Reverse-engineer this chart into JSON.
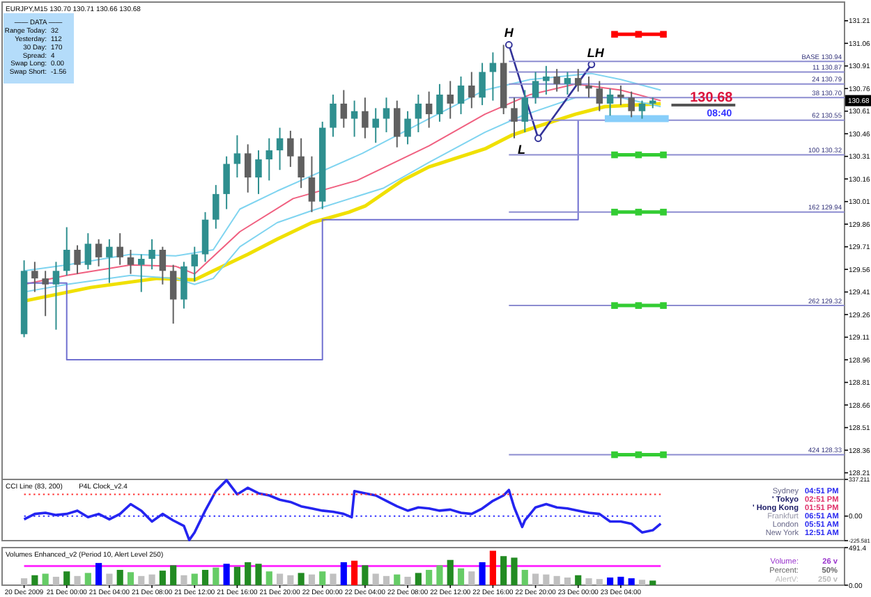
{
  "chart_data": [
    {
      "type": "candlestick",
      "title": "EURJPY,M15 130.70 130.71 130.66 130.68",
      "tick_labels": "y",
      "xlim": [
        "2009-12-20T18:00",
        "2009-12-24T01:00"
      ],
      "ylim": [
        128.18,
        131.32
      ],
      "yticks": [
        131.21,
        131.06,
        130.91,
        130.76,
        130.61,
        130.46,
        130.31,
        130.16,
        130.01,
        129.86,
        129.71,
        129.56,
        129.41,
        129.26,
        129.11,
        128.96,
        128.81,
        128.66,
        128.51,
        128.36,
        128.21
      ],
      "x": [
        "2009-12-20T20:00",
        "2009-12-20T21:00",
        "2009-12-20T22:00",
        "2009-12-20T23:00",
        "2009-12-21T00:00",
        "2009-12-21T01:00",
        "2009-12-21T02:00",
        "2009-12-21T03:00",
        "2009-12-21T04:00",
        "2009-12-21T05:00",
        "2009-12-21T06:00",
        "2009-12-21T07:00",
        "2009-12-21T08:00",
        "2009-12-21T09:00",
        "2009-12-21T10:00",
        "2009-12-21T11:00",
        "2009-12-21T12:00",
        "2009-12-21T13:00",
        "2009-12-21T14:00",
        "2009-12-21T15:00",
        "2009-12-21T16:00",
        "2009-12-21T17:00",
        "2009-12-21T18:00",
        "2009-12-21T19:00",
        "2009-12-21T20:00",
        "2009-12-21T21:00",
        "2009-12-21T22:00",
        "2009-12-21T23:00",
        "2009-12-22T00:00",
        "2009-12-22T01:00",
        "2009-12-22T02:00",
        "2009-12-22T03:00",
        "2009-12-22T04:00",
        "2009-12-22T05:00",
        "2009-12-22T06:00",
        "2009-12-22T07:00",
        "2009-12-22T08:00",
        "2009-12-22T09:00",
        "2009-12-22T10:00",
        "2009-12-22T11:00",
        "2009-12-22T12:00",
        "2009-12-22T13:00",
        "2009-12-22T14:00",
        "2009-12-22T15:00",
        "2009-12-22T16:00",
        "2009-12-22T17:00",
        "2009-12-22T18:00",
        "2009-12-22T19:00",
        "2009-12-22T20:00",
        "2009-12-22T21:00",
        "2009-12-22T22:00",
        "2009-12-22T23:00",
        "2009-12-23T00:00",
        "2009-12-23T01:00",
        "2009-12-23T02:00",
        "2009-12-23T03:00",
        "2009-12-23T04:00",
        "2009-12-23T05:00",
        "2009-12-23T06:00",
        "2009-12-23T07:00"
      ],
      "ohlc": [
        [
          129.13,
          129.62,
          129.11,
          129.55
        ],
        [
          129.55,
          129.61,
          129.41,
          129.5
        ],
        [
          129.5,
          129.55,
          129.25,
          129.46
        ],
        [
          129.46,
          129.61,
          129.16,
          129.55
        ],
        [
          129.55,
          129.84,
          129.52,
          129.69
        ],
        [
          129.69,
          129.72,
          129.53,
          129.59
        ],
        [
          129.59,
          129.8,
          129.56,
          129.73
        ],
        [
          129.73,
          129.76,
          129.58,
          129.64
        ],
        [
          129.64,
          129.76,
          129.47,
          129.71
        ],
        [
          129.71,
          129.8,
          129.59,
          129.64
        ],
        [
          129.64,
          129.69,
          129.53,
          129.59
        ],
        [
          129.59,
          129.66,
          129.41,
          129.63
        ],
        [
          129.63,
          129.76,
          129.56,
          129.69
        ],
        [
          129.69,
          129.71,
          129.46,
          129.55
        ],
        [
          129.55,
          129.59,
          129.2,
          129.36
        ],
        [
          129.36,
          129.61,
          129.3,
          129.58
        ],
        [
          129.58,
          129.71,
          129.48,
          129.66
        ],
        [
          129.66,
          129.94,
          129.61,
          129.89
        ],
        [
          129.89,
          130.12,
          129.83,
          130.06
        ],
        [
          130.06,
          130.31,
          129.96,
          130.26
        ],
        [
          130.26,
          130.45,
          130.17,
          130.33
        ],
        [
          130.33,
          130.39,
          130.07,
          130.17
        ],
        [
          130.17,
          130.35,
          130.06,
          130.29
        ],
        [
          130.29,
          130.43,
          130.15,
          130.35
        ],
        [
          130.35,
          130.5,
          130.22,
          130.43
        ],
        [
          130.43,
          130.48,
          130.24,
          130.31
        ],
        [
          130.31,
          130.43,
          130.1,
          130.17
        ],
        [
          130.17,
          130.31,
          129.94,
          130.01
        ],
        [
          130.01,
          130.54,
          129.96,
          130.5
        ],
        [
          130.5,
          130.72,
          130.44,
          130.66
        ],
        [
          130.66,
          130.75,
          130.5,
          130.56
        ],
        [
          130.56,
          130.68,
          130.44,
          130.61
        ],
        [
          130.61,
          130.7,
          130.43,
          130.5
        ],
        [
          130.5,
          130.63,
          130.4,
          130.56
        ],
        [
          130.56,
          130.7,
          130.47,
          130.63
        ],
        [
          130.63,
          130.68,
          130.37,
          130.44
        ],
        [
          130.44,
          130.61,
          130.39,
          130.56
        ],
        [
          130.56,
          130.72,
          130.47,
          130.66
        ],
        [
          130.66,
          130.74,
          130.5,
          130.59
        ],
        [
          130.59,
          130.79,
          130.54,
          130.72
        ],
        [
          130.72,
          130.81,
          130.56,
          130.66
        ],
        [
          130.66,
          130.84,
          130.59,
          130.78
        ],
        [
          130.78,
          130.87,
          130.63,
          130.7
        ],
        [
          130.7,
          130.93,
          130.65,
          130.87
        ],
        [
          130.87,
          131.0,
          130.68,
          130.93
        ],
        [
          130.93,
          131.05,
          130.59,
          130.63
        ],
        [
          130.63,
          130.7,
          130.43,
          130.54
        ],
        [
          130.54,
          130.75,
          130.47,
          130.7
        ],
        [
          130.7,
          130.87,
          130.66,
          130.81
        ],
        [
          130.81,
          130.91,
          130.72,
          130.84
        ],
        [
          130.84,
          130.89,
          130.74,
          130.79
        ],
        [
          130.79,
          130.87,
          130.72,
          130.83
        ],
        [
          130.83,
          130.89,
          130.74,
          130.78
        ],
        [
          130.78,
          130.84,
          130.7,
          130.76
        ],
        [
          130.76,
          130.81,
          130.61,
          130.66
        ],
        [
          130.66,
          130.76,
          130.58,
          130.72
        ],
        [
          130.72,
          130.78,
          130.65,
          130.7
        ],
        [
          130.7,
          130.74,
          130.57,
          130.61
        ],
        [
          130.61,
          130.68,
          130.56,
          130.66
        ],
        [
          130.66,
          130.7,
          130.63,
          130.68
        ]
      ],
      "colors": [
        "#2f8f8f",
        "#606060",
        "#606060",
        "#2f8f8f",
        "#2f8f8f",
        "#606060",
        "#2f8f8f",
        "#606060",
        "#2f8f8f",
        "#606060",
        "#606060",
        "#2f8f8f",
        "#2f8f8f",
        "#606060",
        "#606060",
        "#2f8f8f",
        "#2f8f8f",
        "#2f8f8f",
        "#2f8f8f",
        "#2f8f8f",
        "#2f8f8f",
        "#606060",
        "#2f8f8f",
        "#2f8f8f",
        "#2f8f8f",
        "#606060",
        "#606060",
        "#606060",
        "#2f8f8f",
        "#2f8f8f",
        "#606060",
        "#2f8f8f",
        "#606060",
        "#2f8f8f",
        "#2f8f8f",
        "#606060",
        "#2f8f8f",
        "#2f8f8f",
        "#606060",
        "#2f8f8f",
        "#606060",
        "#2f8f8f",
        "#606060",
        "#2f8f8f",
        "#2f8f8f",
        "#606060",
        "#606060",
        "#2f8f8f",
        "#2f8f8f",
        "#2f8f8f",
        "#606060",
        "#2f8f8f",
        "#606060",
        "#606060",
        "#606060",
        "#2f8f8f",
        "#606060",
        "#606060",
        "#2f8f8f",
        "#2f8f8f"
      ],
      "series": [
        {
          "type": "line",
          "color": "#f0e000",
          "x": [
            "2009-12-20T20:00",
            "2009-12-21T02:15",
            "2009-12-21T08:30",
            "2009-12-21T12:00",
            "2009-12-21T13:45",
            "2009-12-21T17:00",
            "2009-12-21T19:45",
            "2009-12-21T23:00",
            "2009-12-22T02:30",
            "2009-12-22T04:00",
            "2009-12-22T07:30",
            "2009-12-22T10:00",
            "2009-12-22T15:15",
            "2009-12-22T17:45",
            "2009-12-22T20:15",
            "2009-12-22T23:45",
            "2009-12-23T02:30",
            "2009-12-23T05:15",
            "2009-12-23T07:45"
          ],
          "values": [
            129.35,
            129.44,
            129.5,
            129.49,
            129.55,
            129.66,
            129.76,
            129.87,
            129.94,
            129.98,
            130.15,
            130.24,
            130.36,
            130.45,
            130.51,
            130.59,
            130.64,
            130.65,
            130.66
          ]
        },
        {
          "type": "line",
          "color": "#f06080",
          "x": [
            "2009-12-20T20:00",
            "2009-12-21T00:00",
            "2009-12-21T06:00",
            "2009-12-21T10:15",
            "2009-12-21T12:00",
            "2009-12-21T16:15",
            "2009-12-21T21:15",
            "2009-12-22T03:15",
            "2009-12-22T10:00",
            "2009-12-22T15:15",
            "2009-12-22T19:30",
            "2009-12-22T23:45",
            "2009-12-23T04:00",
            "2009-12-23T07:45"
          ],
          "values": [
            129.46,
            129.52,
            129.59,
            129.58,
            129.53,
            129.81,
            130.03,
            130.15,
            130.38,
            130.59,
            130.72,
            130.79,
            130.75,
            130.68
          ]
        },
        {
          "type": "line",
          "color": "#7fd4f0",
          "x": [
            "2009-12-20T20:00",
            "2009-12-21T00:00",
            "2009-12-21T06:00",
            "2009-12-21T10:15",
            "2009-12-21T13:45",
            "2009-12-21T16:15",
            "2009-12-21T19:45",
            "2009-12-22T03:45",
            "2009-12-22T10:00",
            "2009-12-22T15:15",
            "2009-12-22T19:30",
            "2009-12-23T01:15",
            "2009-12-23T04:00",
            "2009-12-23T07:45"
          ],
          "values": [
            129.55,
            129.59,
            129.66,
            129.65,
            129.69,
            129.96,
            130.08,
            130.33,
            130.56,
            130.75,
            130.82,
            130.86,
            130.82,
            130.75
          ]
        },
        {
          "type": "line",
          "color": "#7fd4f0",
          "x": [
            "2009-12-20T20:00",
            "2009-12-21T00:00",
            "2009-12-21T06:00",
            "2009-12-21T10:15",
            "2009-12-21T12:00",
            "2009-12-21T13:45",
            "2009-12-21T16:15",
            "2009-12-21T19:45",
            "2009-12-21T23:00",
            "2009-12-22T05:45",
            "2009-12-22T10:00",
            "2009-12-22T15:15",
            "2009-12-22T18:45",
            "2009-12-22T23:45",
            "2009-12-23T04:00",
            "2009-12-23T07:45"
          ],
          "values": [
            129.41,
            129.46,
            129.52,
            129.5,
            129.46,
            129.5,
            129.71,
            129.87,
            129.95,
            130.1,
            130.27,
            130.47,
            130.58,
            130.7,
            130.7,
            130.64
          ]
        },
        {
          "type": "step",
          "color": "#7070d0",
          "x": [
            "2009-12-20T20:00",
            "2009-12-21T00:00",
            "2009-12-22T00:00",
            "2009-12-23T00:00"
          ],
          "values": [
            129.47,
            128.96,
            129.89,
            130.55
          ]
        },
        {
          "type": "line",
          "color": "#333399",
          "marker": "circle",
          "x": [
            "2009-12-22T17:30",
            "2009-12-22T20:15",
            "2009-12-23T01:15"
          ],
          "values": [
            131.05,
            130.43,
            130.92
          ]
        },
        {
          "type": "line",
          "color": "#8c8cd0",
          "name": "BASE 130.94",
          "x": [
            "2009-12-22T17:30",
            "2009-12-24T01:00"
          ],
          "values": [
            130.94,
            130.94
          ]
        },
        {
          "type": "line",
          "color": "#8c8cd0",
          "name": "11 130.87",
          "x": [
            "2009-12-22T17:30",
            "2009-12-24T01:00"
          ],
          "values": [
            130.87,
            130.87
          ]
        },
        {
          "type": "line",
          "color": "#8c8cd0",
          "name": "24 130.79",
          "x": [
            "2009-12-22T17:30",
            "2009-12-24T01:00"
          ],
          "values": [
            130.79,
            130.79
          ]
        },
        {
          "type": "line",
          "color": "#8c8cd0",
          "name": "38 130.70",
          "x": [
            "2009-12-22T17:30",
            "2009-12-24T01:00"
          ],
          "values": [
            130.7,
            130.7
          ]
        },
        {
          "type": "line",
          "color": "#8c8cd0",
          "name": "62 130.55",
          "x": [
            "2009-12-22T17:30",
            "2009-12-24T01:00"
          ],
          "values": [
            130.55,
            130.55
          ]
        },
        {
          "type": "line",
          "color": "#8c8cd0",
          "name": "100 130.32",
          "x": [
            "2009-12-22T17:30",
            "2009-12-24T01:00"
          ],
          "values": [
            130.32,
            130.32
          ]
        },
        {
          "type": "line",
          "color": "#8c8cd0",
          "name": "162 129.94",
          "x": [
            "2009-12-22T17:30",
            "2009-12-24T01:00"
          ],
          "values": [
            129.94,
            129.94
          ]
        },
        {
          "type": "line",
          "color": "#8c8cd0",
          "name": "262 129.32",
          "x": [
            "2009-12-22T17:30",
            "2009-12-24T01:00"
          ],
          "values": [
            129.32,
            129.32
          ]
        },
        {
          "type": "line",
          "color": "#8c8cd0",
          "name": "424 128.33",
          "x": [
            "2009-12-22T17:30",
            "2009-12-24T01:00"
          ],
          "values": [
            128.33,
            128.33
          ]
        },
        {
          "type": "line",
          "color": "#ff0000",
          "marker": "square",
          "x": [
            "2009-12-23T03:25",
            "2009-12-23T05:40",
            "2009-12-23T08:00"
          ],
          "values": [
            131.12,
            131.12,
            131.12
          ]
        },
        {
          "type": "line",
          "color": "#33cc33",
          "marker": "square",
          "x": [
            "2009-12-23T03:25",
            "2009-12-23T05:40",
            "2009-12-23T08:00"
          ],
          "values": [
            130.32,
            130.32,
            130.32
          ]
        },
        {
          "type": "line",
          "color": "#33cc33",
          "marker": "square",
          "x": [
            "2009-12-23T03:25",
            "2009-12-23T05:40",
            "2009-12-23T08:00"
          ],
          "values": [
            129.94,
            129.94,
            129.94
          ]
        },
        {
          "type": "line",
          "color": "#33cc33",
          "marker": "square",
          "x": [
            "2009-12-23T03:25",
            "2009-12-23T05:40",
            "2009-12-23T08:00"
          ],
          "values": [
            129.32,
            129.32,
            129.32
          ]
        },
        {
          "type": "line",
          "color": "#33cc33",
          "marker": "square",
          "x": [
            "2009-12-23T03:25",
            "2009-12-23T05:40",
            "2009-12-23T08:00"
          ],
          "values": [
            128.33,
            128.33,
            128.33
          ]
        },
        {
          "type": "line",
          "color": "#87cefa",
          "x": [
            "2009-12-23T02:30",
            "2009-12-23T08:30"
          ],
          "values": [
            130.56,
            130.56
          ]
        },
        {
          "type": "line",
          "color": "#555555",
          "x": [
            "2009-12-23T08:45",
            "2009-12-23T14:45"
          ],
          "values": [
            130.65,
            130.65
          ]
        }
      ],
      "annotations": [
        "—— DATA ——",
        "Range Today:",
        "32",
        "Yesterday:",
        "112",
        "30 Day:",
        "170",
        "Spread:",
        "4",
        "Swap Long:",
        "0.00",
        "Swap Short:",
        "-1.56",
        {
          "text": "H",
          "x": "2009-12-22T17:30",
          "y": 131.05
        },
        {
          "text": "L",
          "x": "2009-12-22T20:15",
          "y": 130.43
        },
        {
          "text": "LH",
          "x": "2009-12-23T01:15",
          "y": 130.92
        },
        {
          "text": "130.68",
          "x": "2009-12-23T12:30",
          "y": 130.65
        },
        {
          "text": "08:40",
          "x": "2009-12-23T13:15",
          "y": 130.65
        },
        {
          "text": "130.68",
          "y": 130.68
        }
      ]
    },
    {
      "type": "line",
      "title": "CCI Line (83, 200)",
      "subtitle": "P4L Clock_v2.4",
      "tick_labels": "y",
      "xlim": [
        "2009-12-20T18:00",
        "2009-12-24T01:00"
      ],
      "ylim": [
        -225.581,
        337.211
      ],
      "yticks": [
        337.211,
        {
          "value": 0,
          "label": "0.00"
        },
        -225.581
      ],
      "series": [
        {
          "color": "#2424f0",
          "x": [
            "2009-12-20T20:00",
            "2009-12-20T21:00",
            "2009-12-20T22:00",
            "2009-12-20T23:00",
            "2009-12-21T00:00",
            "2009-12-21T01:00",
            "2009-12-21T02:00",
            "2009-12-21T03:00",
            "2009-12-21T04:00",
            "2009-12-21T05:00",
            "2009-12-21T06:00",
            "2009-12-21T07:00",
            "2009-12-21T08:00",
            "2009-12-21T09:00",
            "2009-12-21T10:00",
            "2009-12-21T11:00",
            "2009-12-21T11:30",
            "2009-12-21T12:00",
            "2009-12-21T13:00",
            "2009-12-21T14:00",
            "2009-12-21T15:00",
            "2009-12-21T16:00",
            "2009-12-21T17:00",
            "2009-12-21T18:00",
            "2009-12-21T19:00",
            "2009-12-21T20:00",
            "2009-12-21T21:00",
            "2009-12-21T22:00",
            "2009-12-21T23:00",
            "2009-12-22T00:00",
            "2009-12-22T01:00",
            "2009-12-22T02:00",
            "2009-12-22T02:45",
            "2009-12-22T03:00",
            "2009-12-22T04:00",
            "2009-12-22T05:00",
            "2009-12-22T06:00",
            "2009-12-22T07:00",
            "2009-12-22T08:00",
            "2009-12-22T09:00",
            "2009-12-22T10:00",
            "2009-12-22T11:00",
            "2009-12-22T12:00",
            "2009-12-22T13:00",
            "2009-12-22T14:00",
            "2009-12-22T15:00",
            "2009-12-22T16:00",
            "2009-12-22T17:00",
            "2009-12-22T17:30",
            "2009-12-22T18:00",
            "2009-12-22T18:45",
            "2009-12-22T19:00",
            "2009-12-22T20:00",
            "2009-12-22T21:00",
            "2009-12-22T22:00",
            "2009-12-22T23:00",
            "2009-12-23T00:00",
            "2009-12-23T01:00",
            "2009-12-23T02:00",
            "2009-12-23T03:00",
            "2009-12-23T04:00",
            "2009-12-23T05:00",
            "2009-12-23T06:00",
            "2009-12-23T07:00",
            "2009-12-23T07:45"
          ],
          "values": [
            -30,
            20,
            30,
            10,
            20,
            50,
            -10,
            20,
            -30,
            20,
            110,
            50,
            -50,
            20,
            -40,
            -90,
            -220,
            -150,
            50,
            230,
            330,
            200,
            260,
            210,
            190,
            150,
            130,
            90,
            70,
            50,
            40,
            20,
            -10,
            230,
            210,
            190,
            140,
            90,
            50,
            80,
            70,
            50,
            60,
            30,
            20,
            70,
            140,
            190,
            240,
            80,
            -100,
            -40,
            80,
            110,
            80,
            70,
            50,
            30,
            20,
            -50,
            -50,
            -70,
            -150,
            -130,
            -70
          ]
        },
        {
          "color": "#ff3030",
          "line_style": "dotted",
          "x": [
            "2009-12-20T20:00",
            "2009-12-23T07:45"
          ],
          "values": [
            200,
            200
          ]
        },
        {
          "color": "#3030ff",
          "line_style": "dotted",
          "x": [
            "2009-12-20T20:00",
            "2009-12-23T07:45"
          ],
          "values": [
            0,
            0
          ]
        }
      ],
      "annotations": [
        "Sydney",
        "04:51 PM",
        "' Tokyo",
        "02:51 PM",
        "' Hong Kong",
        "01:51 PM",
        "Frankfurt",
        "06:51 AM",
        "London",
        "05:51 AM",
        "New York",
        "12:51 AM"
      ]
    },
    {
      "type": "bar",
      "title": "Volumes Enhanced_v2 (Period 10, Alert Level 250)",
      "xlim": [
        "2009-12-20T18:00",
        "2009-12-24T01:00"
      ],
      "ylim": [
        0,
        491.4
      ],
      "yticks": [
        491.4,
        {
          "value": 0,
          "label": "0.00"
        }
      ],
      "xticks": [
        {
          "value": "2009-12-20T20:00",
          "label": "20 Dec 2009"
        },
        {
          "value": "2009-12-21T00:00",
          "label": "21 Dec 00:00"
        },
        {
          "value": "2009-12-21T04:00",
          "label": "21 Dec 04:00"
        },
        {
          "value": "2009-12-21T08:00",
          "label": "21 Dec 08:00"
        },
        {
          "value": "2009-12-21T12:00",
          "label": "21 Dec 12:00"
        },
        {
          "value": "2009-12-21T16:00",
          "label": "21 Dec 16:00"
        },
        {
          "value": "2009-12-21T20:00",
          "label": "21 Dec 20:00"
        },
        {
          "value": "2009-12-22T00:00",
          "label": "22 Dec 00:00"
        },
        {
          "value": "2009-12-22T04:00",
          "label": "22 Dec 04:00"
        },
        {
          "value": "2009-12-22T08:00",
          "label": "22 Dec 08:00"
        },
        {
          "value": "2009-12-22T12:00",
          "label": "22 Dec 12:00"
        },
        {
          "value": "2009-12-22T16:00",
          "label": "22 Dec 16:00"
        },
        {
          "value": "2009-12-22T20:00",
          "label": "22 Dec 20:00"
        },
        {
          "value": "2009-12-23T00:00",
          "label": "23 Dec 00:00"
        },
        {
          "value": "2009-12-23T04:00",
          "label": "23 Dec 04:00"
        }
      ],
      "x": [
        "2009-12-20T20:00",
        "2009-12-20T21:00",
        "2009-12-20T22:00",
        "2009-12-20T23:00",
        "2009-12-21T00:00",
        "2009-12-21T01:00",
        "2009-12-21T02:00",
        "2009-12-21T03:00",
        "2009-12-21T04:00",
        "2009-12-21T05:00",
        "2009-12-21T06:00",
        "2009-12-21T07:00",
        "2009-12-21T08:00",
        "2009-12-21T09:00",
        "2009-12-21T10:00",
        "2009-12-21T11:00",
        "2009-12-21T12:00",
        "2009-12-21T13:00",
        "2009-12-21T14:00",
        "2009-12-21T15:00",
        "2009-12-21T16:00",
        "2009-12-21T17:00",
        "2009-12-21T18:00",
        "2009-12-21T19:00",
        "2009-12-21T20:00",
        "2009-12-21T21:00",
        "2009-12-21T22:00",
        "2009-12-21T23:00",
        "2009-12-22T00:00",
        "2009-12-22T01:00",
        "2009-12-22T02:00",
        "2009-12-22T03:00",
        "2009-12-22T04:00",
        "2009-12-22T05:00",
        "2009-12-22T06:00",
        "2009-12-22T07:00",
        "2009-12-22T08:00",
        "2009-12-22T09:00",
        "2009-12-22T10:00",
        "2009-12-22T11:00",
        "2009-12-22T12:00",
        "2009-12-22T13:00",
        "2009-12-22T14:00",
        "2009-12-22T15:00",
        "2009-12-22T16:00",
        "2009-12-22T17:00",
        "2009-12-22T18:00",
        "2009-12-22T19:00",
        "2009-12-22T20:00",
        "2009-12-22T21:00",
        "2009-12-22T22:00",
        "2009-12-22T23:00",
        "2009-12-23T00:00",
        "2009-12-23T01:00",
        "2009-12-23T02:00",
        "2009-12-23T03:00",
        "2009-12-23T04:00",
        "2009-12-23T05:00",
        "2009-12-23T06:00",
        "2009-12-23T07:00"
      ],
      "values": [
        90,
        130,
        150,
        110,
        180,
        120,
        160,
        290,
        150,
        200,
        170,
        120,
        140,
        190,
        260,
        130,
        150,
        200,
        230,
        280,
        240,
        300,
        280,
        180,
        150,
        130,
        160,
        140,
        180,
        150,
        300,
        320,
        260,
        150,
        120,
        140,
        110,
        160,
        200,
        260,
        330,
        220,
        180,
        300,
        450,
        380,
        360,
        200,
        150,
        140,
        120,
        100,
        130,
        90,
        80,
        100,
        110,
        90,
        70,
        60
      ],
      "colors": [
        "#c0c0c0",
        "#228b22",
        "#66cc66",
        "#c0c0c0",
        "#228b22",
        "#c0c0c0",
        "#66cc66",
        "#0000ff",
        "#c0c0c0",
        "#228b22",
        "#66cc66",
        "#c0c0c0",
        "#c0c0c0",
        "#228b22",
        "#228b22",
        "#c0c0c0",
        "#66cc66",
        "#228b22",
        "#66cc66",
        "#0000ff",
        "#228b22",
        "#228b22",
        "#228b22",
        "#66cc66",
        "#c0c0c0",
        "#c0c0c0",
        "#228b22",
        "#c0c0c0",
        "#66cc66",
        "#c0c0c0",
        "#0000ff",
        "#ff0000",
        "#228b22",
        "#c0c0c0",
        "#c0c0c0",
        "#66cc66",
        "#c0c0c0",
        "#228b22",
        "#66cc66",
        "#66cc66",
        "#228b22",
        "#66cc66",
        "#c0c0c0",
        "#0000ff",
        "#ff0000",
        "#228b22",
        "#228b22",
        "#66cc66",
        "#c0c0c0",
        "#c0c0c0",
        "#c0c0c0",
        "#c0c0c0",
        "#228b22",
        "#c0c0c0",
        "#c0c0c0",
        "#0000ff",
        "#0000ff",
        "#0000ff",
        "#c0c0c0",
        "#228b22"
      ],
      "series": [
        {
          "type": "line",
          "color": "#ff33ff",
          "x": [
            "2009-12-20T20:00",
            "2009-12-23T07:45"
          ],
          "values": [
            250,
            250
          ]
        }
      ],
      "annotations": [
        "Volume:",
        "26 v",
        "Percent:",
        "50%",
        "AlertV:",
        "250 v"
      ]
    }
  ]
}
